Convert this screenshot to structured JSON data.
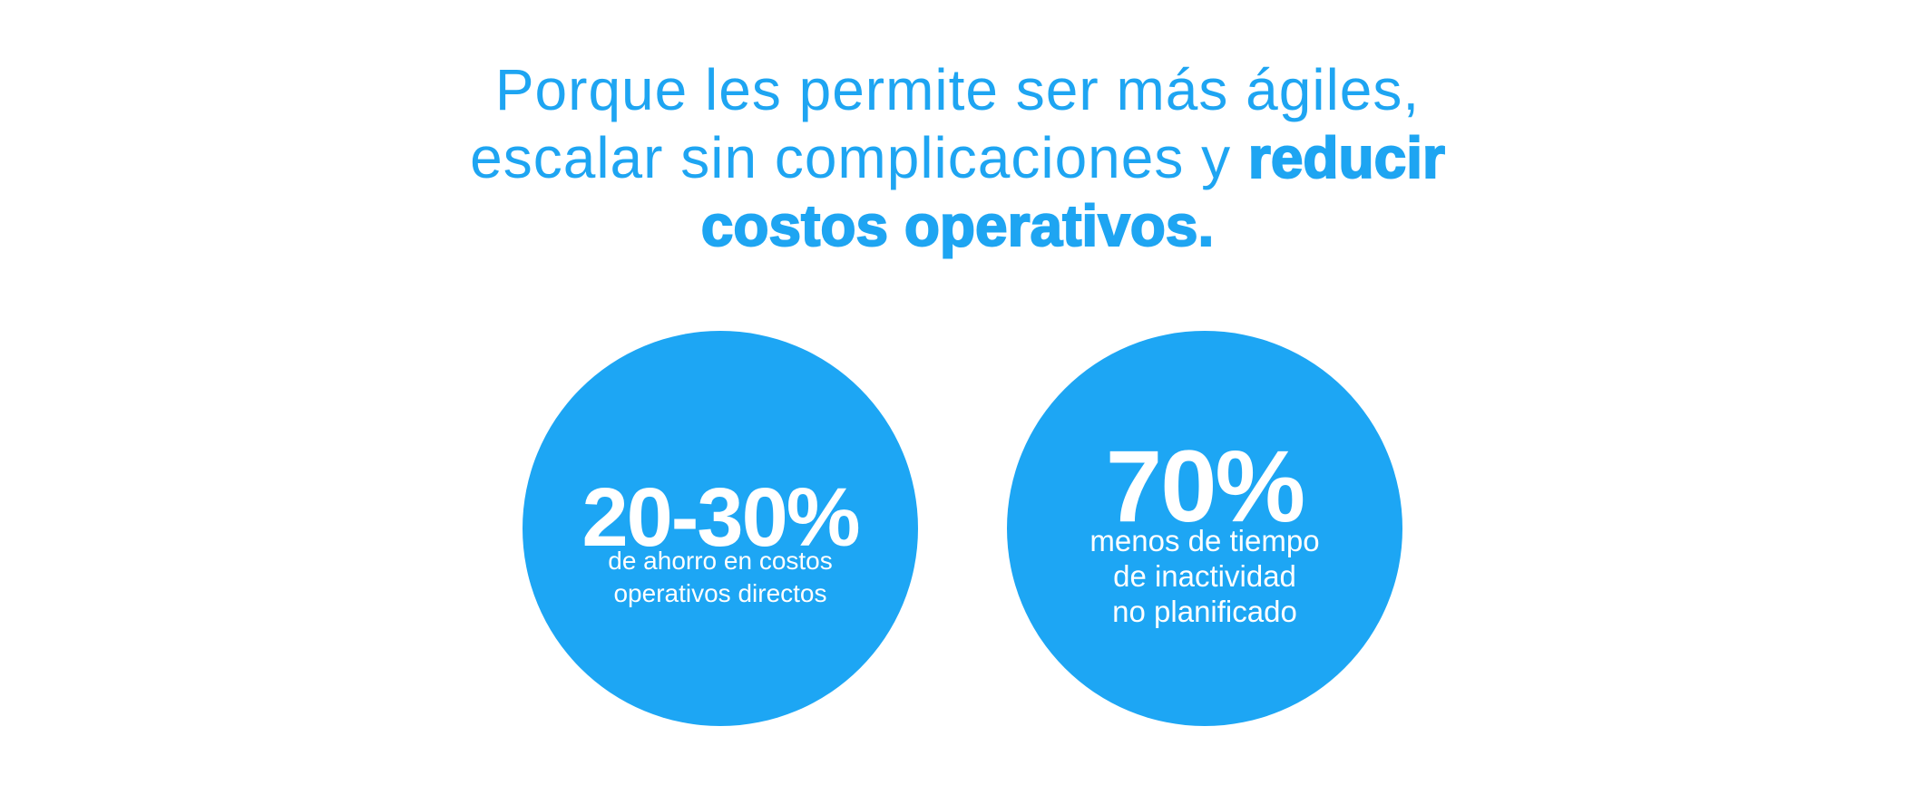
{
  "headline": {
    "line1": "Porque les permite ser más ágiles,",
    "line2_regular": "escalar sin complicaciones y ",
    "line2_bold": "reducir",
    "line3_bold": "costos operativos."
  },
  "stats": [
    {
      "value": "20-30%",
      "description_lines": [
        "de ahorro en costos",
        "operativos directos"
      ]
    },
    {
      "value": "70%",
      "description_lines": [
        "menos de tiempo",
        "de inactividad",
        "no planificado"
      ]
    }
  ],
  "colors": {
    "accent": "#1ea5f2",
    "circle": "#1da6f4",
    "background": "#ffffff",
    "stat_text": "#ffffff"
  }
}
